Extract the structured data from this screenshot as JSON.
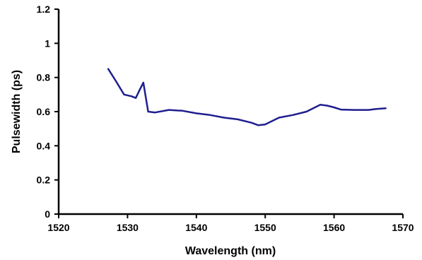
{
  "chart_data": {
    "type": "line",
    "xlabel": "Wavelength (nm)",
    "ylabel": "Pulsewidth (ps)",
    "xlim": [
      1520,
      1570
    ],
    "ylim": [
      0,
      1.2
    ],
    "x_ticks": [
      "1520",
      "1530",
      "1540",
      "1550",
      "1560",
      "1570"
    ],
    "y_ticks": [
      "0",
      "0.2",
      "0.4",
      "0.6",
      "0.8",
      "1",
      "1.2"
    ],
    "grid": false,
    "legend": "none",
    "series": [
      {
        "color": "#1f1f8f",
        "points": [
          [
            1527.2,
            0.85
          ],
          [
            1528.3,
            0.78
          ],
          [
            1529.5,
            0.7
          ],
          [
            1530.6,
            0.69
          ],
          [
            1531.2,
            0.68
          ],
          [
            1531.8,
            0.73
          ],
          [
            1532.3,
            0.77
          ],
          [
            1533.0,
            0.6
          ],
          [
            1534.0,
            0.595
          ],
          [
            1536.0,
            0.61
          ],
          [
            1538.0,
            0.605
          ],
          [
            1540.0,
            0.59
          ],
          [
            1542.0,
            0.58
          ],
          [
            1544.0,
            0.565
          ],
          [
            1546.0,
            0.555
          ],
          [
            1548.0,
            0.535
          ],
          [
            1549.0,
            0.52
          ],
          [
            1550.0,
            0.525
          ],
          [
            1552.0,
            0.565
          ],
          [
            1554.0,
            0.58
          ],
          [
            1556.0,
            0.6
          ],
          [
            1558.0,
            0.64
          ],
          [
            1559.0,
            0.635
          ],
          [
            1560.0,
            0.625
          ],
          [
            1561.0,
            0.612
          ],
          [
            1563.0,
            0.61
          ],
          [
            1565.0,
            0.61
          ],
          [
            1566.0,
            0.615
          ],
          [
            1567.5,
            0.62
          ]
        ]
      }
    ]
  }
}
